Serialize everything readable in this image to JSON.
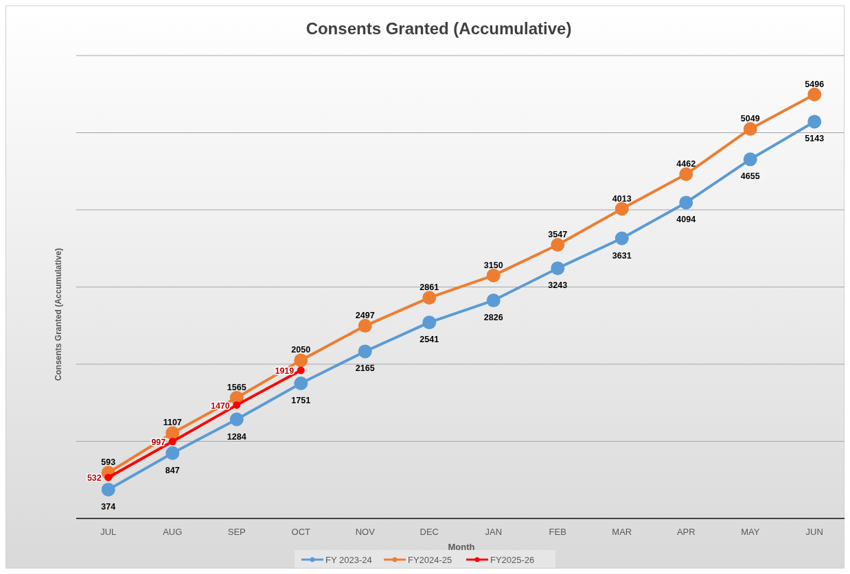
{
  "chart_data": {
    "type": "line",
    "title": "Consents Granted (Accumulative)",
    "xlabel": "Month",
    "ylabel": "Consents Granted (Accumulative)",
    "categories": [
      "JUL",
      "AUG",
      "SEP",
      "OCT",
      "NOV",
      "DEC",
      "JAN",
      "FEB",
      "MAR",
      "APR",
      "MAY",
      "JUN"
    ],
    "series": [
      {
        "name": "FY 2023-24",
        "color": "#5b9bd5",
        "values": [
          374,
          847,
          1284,
          1751,
          2165,
          2541,
          2826,
          3243,
          3631,
          4094,
          4655,
          5143
        ]
      },
      {
        "name": "FY2024-25",
        "color": "#ed7d31",
        "values": [
          593,
          1107,
          1565,
          2050,
          2497,
          2861,
          3150,
          3547,
          4013,
          4462,
          5049,
          5496
        ]
      },
      {
        "name": "FY2025-26",
        "color": "#ff0000",
        "values": [
          532,
          997,
          1470,
          1919,
          null,
          null,
          null,
          null,
          null,
          null,
          null,
          null
        ]
      }
    ],
    "ylim": [
      0,
      6000
    ],
    "yticks": [
      {
        "value": 0,
        "label": null
      },
      {
        "value": 1000,
        "label": null
      },
      {
        "value": 2000,
        "label": null
      },
      {
        "value": 3000,
        "label": null
      },
      {
        "value": 4000,
        "label": null
      },
      {
        "value": 5000,
        "label": null
      },
      {
        "value": 6000,
        "label": null
      }
    ],
    "grid": "y",
    "legend": "bottom",
    "marker": "circle",
    "line_style": "solid",
    "data_labels": true
  }
}
